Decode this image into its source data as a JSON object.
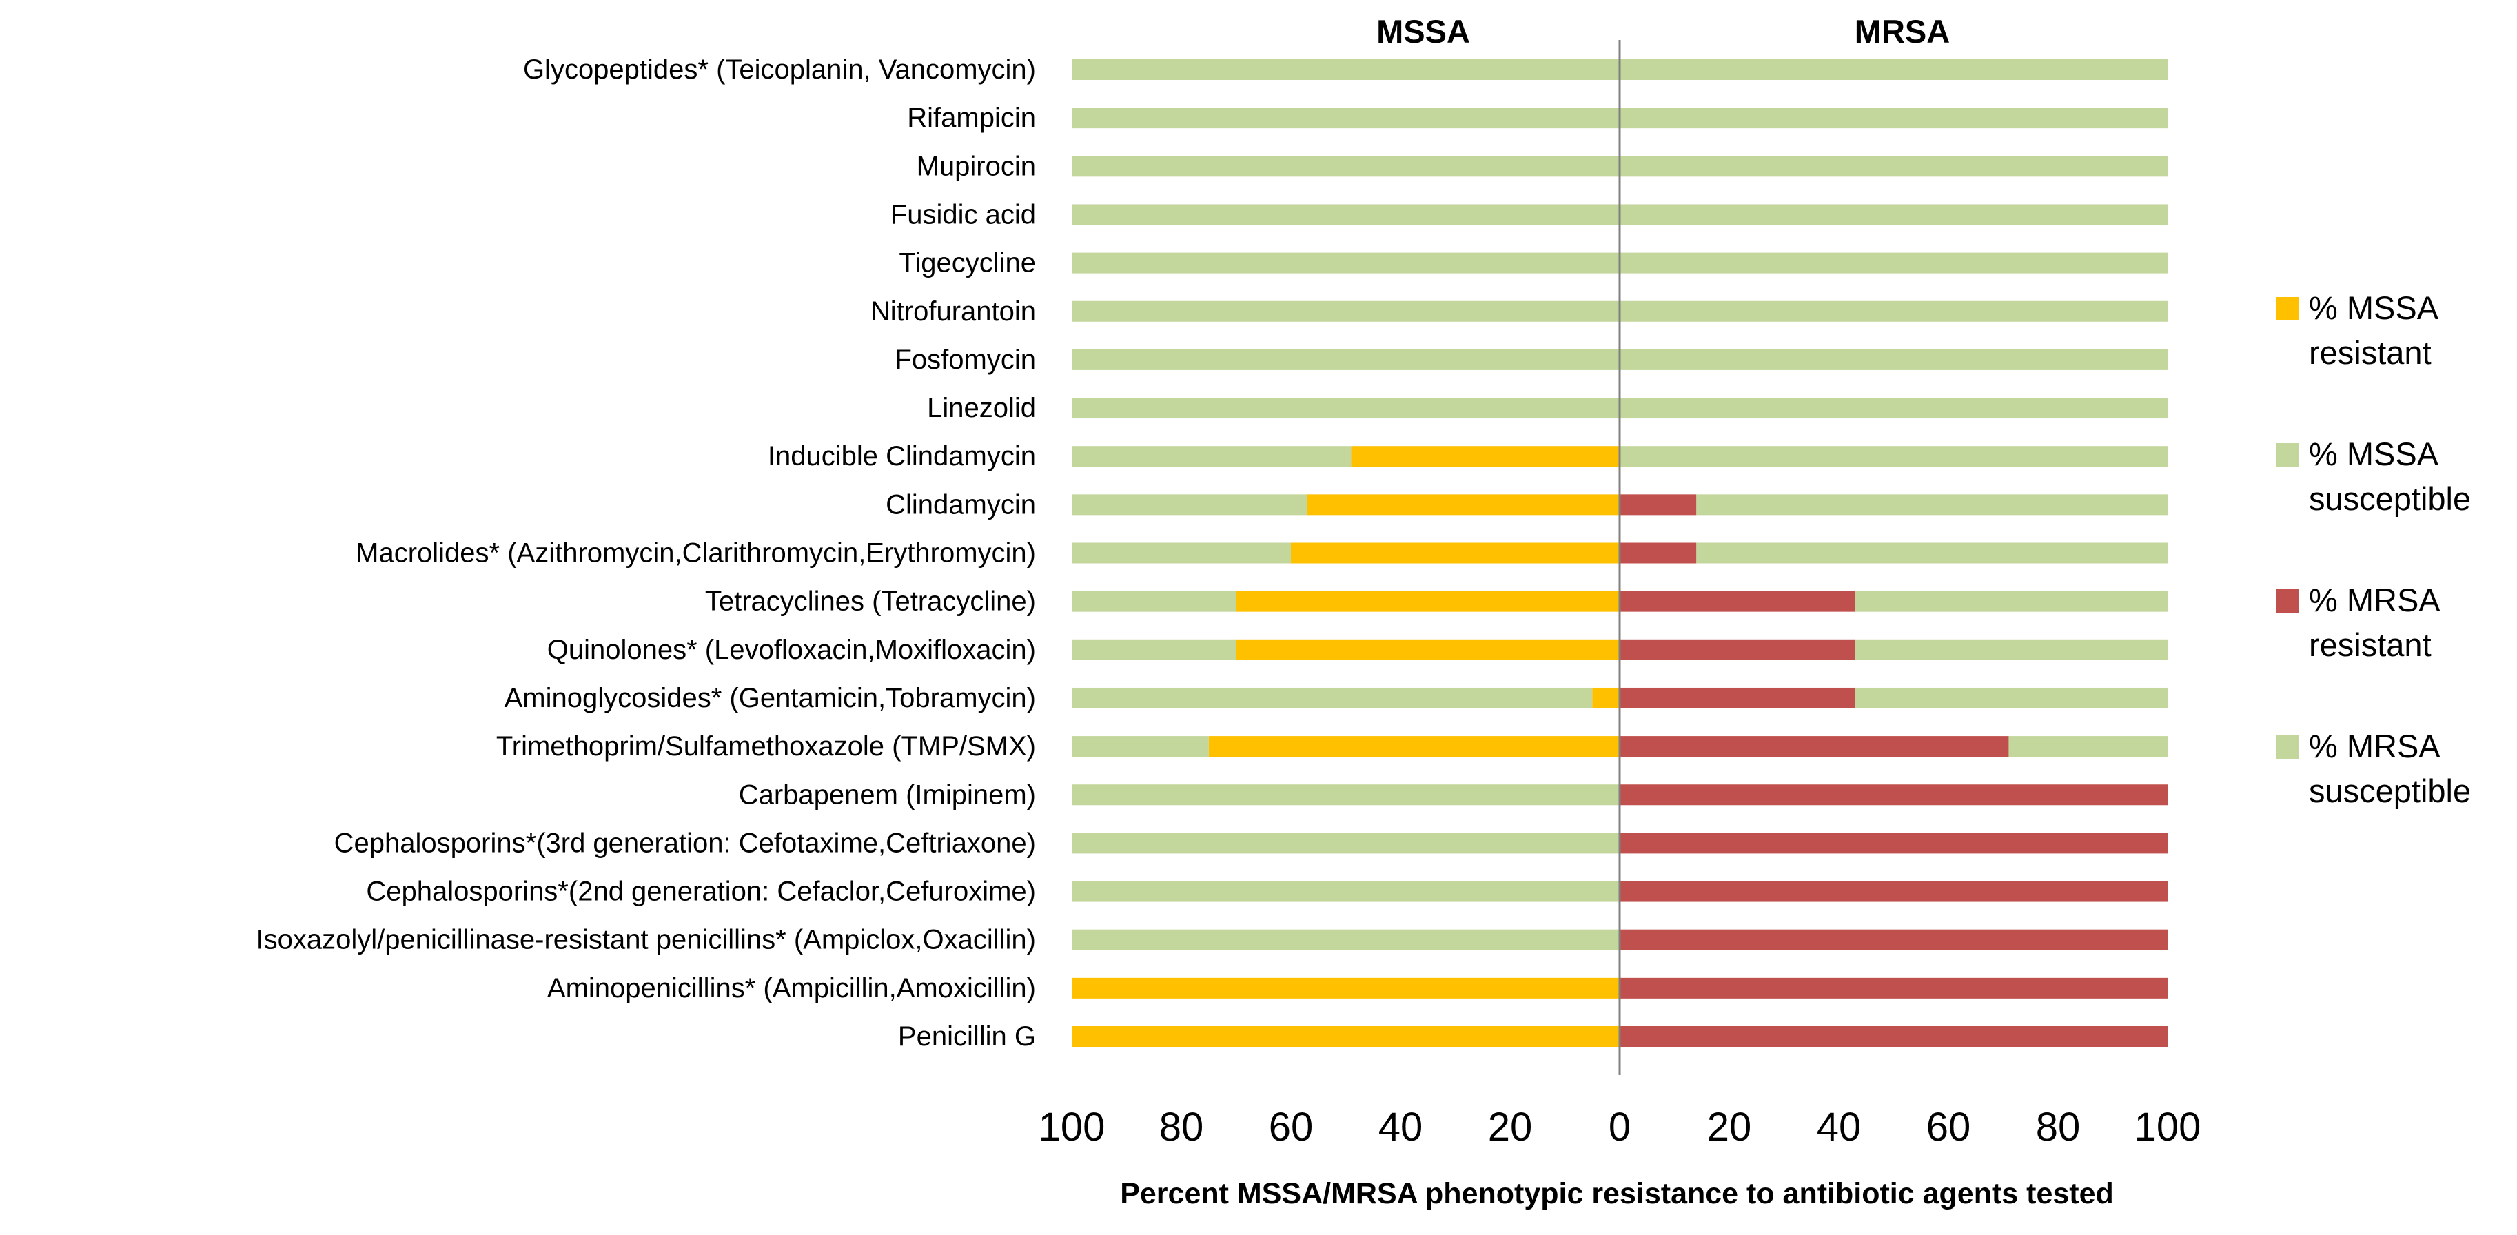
{
  "chart_data": {
    "type": "bar",
    "orientation": "horizontal",
    "layout": "diverging",
    "panels": [
      "MSSA",
      "MRSA"
    ],
    "xlabel": "Percent MSSA/MRSA phenotypic resistance to antibiotic agents tested",
    "ylabel": "",
    "xlim_left": [
      100,
      0
    ],
    "xlim_right": [
      0,
      100
    ],
    "x_ticks_left": [
      "100",
      "80",
      "60",
      "40",
      "20",
      "0"
    ],
    "x_ticks_right": [
      "20",
      "40",
      "60",
      "80",
      "100"
    ],
    "categories": [
      "Glycopeptides* (Teicoplanin, Vancomycin)",
      "Rifampicin",
      "Mupirocin",
      "Fusidic acid",
      "Tigecycline",
      "Nitrofurantoin",
      "Fosfomycin",
      "Linezolid",
      "Inducible Clindamycin",
      "Clindamycin",
      "Macrolides* (Azithromycin,Clarithromycin,Erythromycin)",
      "Tetracyclines (Tetracycline)",
      "Quinolones* (Levofloxacin,Moxifloxacin)",
      "Aminoglycosides* (Gentamicin,Tobramycin)",
      "Trimethoprim/Sulfamethoxazole (TMP/SMX)",
      "Carbapenem (Imipinem)",
      "Cephalosporins*(3rd generation: Cefotaxime,Ceftriaxone)",
      "Cephalosporins*(2nd generation: Cefaclor,Cefuroxime)",
      "Isoxazolyl/penicillinase-resistant penicillins* (Ampiclox,Oxacillin)",
      "Aminopenicillins* (Ampicillin,Amoxicillin)",
      "Penicillin G"
    ],
    "series": [
      {
        "name": "% MSSA resistant",
        "color": "#FFC000",
        "side": "left",
        "values": [
          0,
          0,
          0,
          0,
          0,
          0,
          0,
          0,
          49,
          57,
          60,
          70,
          70,
          5,
          75,
          0,
          0,
          0,
          0,
          100,
          100
        ]
      },
      {
        "name": "% MSSA susceptible",
        "color": "#C3D69B",
        "side": "left",
        "values": [
          100,
          100,
          100,
          100,
          100,
          100,
          100,
          100,
          51,
          43,
          40,
          30,
          30,
          95,
          25,
          100,
          100,
          100,
          100,
          0,
          0
        ]
      },
      {
        "name": "% MRSA resistant",
        "color": "#C0504D",
        "side": "right",
        "values": [
          0,
          0,
          0,
          0,
          0,
          0,
          0,
          0,
          0,
          14,
          14,
          43,
          43,
          43,
          71,
          100,
          100,
          100,
          100,
          100,
          100
        ]
      },
      {
        "name": "% MRSA susceptible",
        "color": "#C3D69B",
        "side": "right",
        "values": [
          100,
          100,
          100,
          100,
          100,
          100,
          100,
          100,
          100,
          86,
          86,
          57,
          57,
          57,
          29,
          0,
          0,
          0,
          0,
          0,
          0
        ]
      }
    ],
    "legend": {
      "position": "right",
      "entries": [
        {
          "line1": "% MSSA",
          "line2": "resistant",
          "color": "#FFC000"
        },
        {
          "line1": "% MSSA",
          "line2": "susceptible",
          "color": "#C3D69B"
        },
        {
          "line1": "% MRSA",
          "line2": "resistant",
          "color": "#C0504D"
        },
        {
          "line1": "% MRSA",
          "line2": "susceptible",
          "color": "#C3D69B"
        }
      ]
    },
    "center_line_color": "#808080"
  }
}
